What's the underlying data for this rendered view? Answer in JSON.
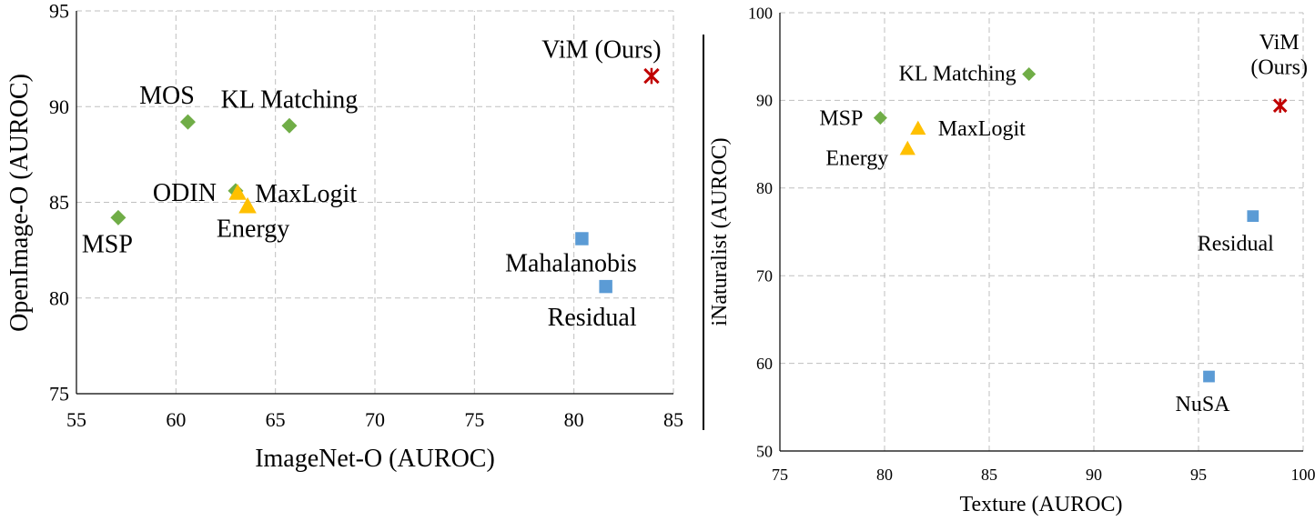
{
  "chart_data": [
    {
      "type": "scatter",
      "xlabel": "ImageNet-O (AUROC)",
      "ylabel": "OpenImage-O (AUROC)",
      "xlim": [
        55,
        85
      ],
      "ylim": [
        75,
        95
      ],
      "xticks": [
        "55",
        "60",
        "65",
        "70",
        "75",
        "80",
        "85"
      ],
      "yticks": [
        "75",
        "80",
        "85",
        "90",
        "95"
      ],
      "grid": true,
      "points": [
        {
          "name": "MSP",
          "x": 57.1,
          "y": 84.2,
          "marker": "diamond",
          "color": "#70ad47"
        },
        {
          "name": "MOS",
          "x": 60.6,
          "y": 89.2,
          "marker": "diamond",
          "color": "#70ad47"
        },
        {
          "name": "KL Matching",
          "x": 65.7,
          "y": 89.0,
          "marker": "diamond",
          "color": "#70ad47"
        },
        {
          "name": "ODIN",
          "x": 63.0,
          "y": 85.6,
          "marker": "diamond",
          "color": "#70ad47"
        },
        {
          "name": "MaxLogit",
          "x": 63.1,
          "y": 85.5,
          "marker": "triangle",
          "color": "#ffc000"
        },
        {
          "name": "Energy",
          "x": 63.6,
          "y": 84.8,
          "marker": "triangle",
          "color": "#ffc000"
        },
        {
          "name": "Mahalanobis",
          "x": 80.4,
          "y": 83.1,
          "marker": "square",
          "color": "#5b9bd5"
        },
        {
          "name": "Residual",
          "x": 81.6,
          "y": 80.6,
          "marker": "square",
          "color": "#5b9bd5"
        },
        {
          "name": "ViM (Ours)",
          "x": 83.9,
          "y": 91.6,
          "marker": "cross",
          "color": "#c00000"
        }
      ]
    },
    {
      "type": "scatter",
      "xlabel": "Texture (AUROC)",
      "ylabel": "iNaturalist (AUROC)",
      "xlim": [
        75,
        100
      ],
      "ylim": [
        50,
        100
      ],
      "xticks": [
        "75",
        "80",
        "85",
        "90",
        "95",
        "100"
      ],
      "yticks": [
        "50",
        "60",
        "70",
        "80",
        "90",
        "100"
      ],
      "grid": true,
      "points": [
        {
          "name": "KL Matching",
          "x": 86.9,
          "y": 93.0,
          "marker": "diamond",
          "color": "#70ad47"
        },
        {
          "name": "MSP",
          "x": 79.8,
          "y": 88.0,
          "marker": "diamond",
          "color": "#70ad47"
        },
        {
          "name": "MaxLogit",
          "x": 81.6,
          "y": 86.8,
          "marker": "triangle",
          "color": "#ffc000"
        },
        {
          "name": "Energy",
          "x": 81.1,
          "y": 84.5,
          "marker": "triangle",
          "color": "#ffc000"
        },
        {
          "name": "ViM (Ours)",
          "x": 98.9,
          "y": 89.4,
          "marker": "cross",
          "color": "#c00000"
        },
        {
          "name": "Residual",
          "x": 97.6,
          "y": 76.8,
          "marker": "square",
          "color": "#5b9bd5"
        },
        {
          "name": "NuSA",
          "x": 95.5,
          "y": 58.5,
          "marker": "square",
          "color": "#5b9bd5"
        }
      ]
    }
  ]
}
